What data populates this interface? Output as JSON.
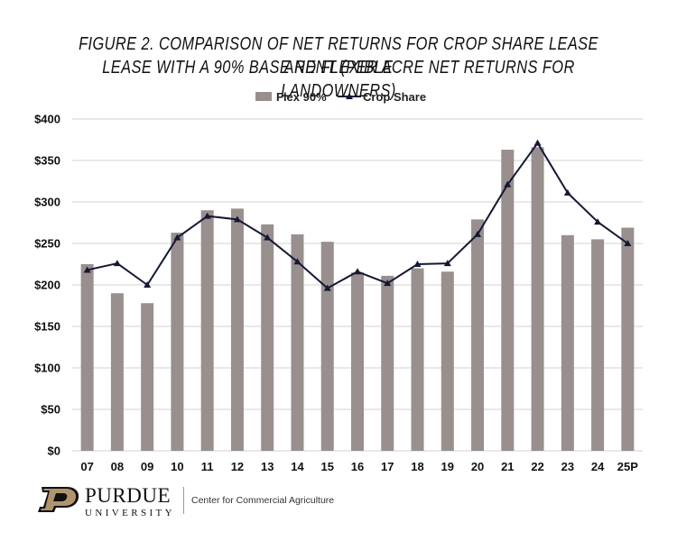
{
  "title": {
    "line1": "FIGURE 2. COMPARISON OF NET RETURNS FOR CROP SHARE LEASE AND FLEXIBLE",
    "line2": "LEASE WITH A 90% BASE RENT  (PER ACRE NET RETURNS FOR LANDOWNERS)"
  },
  "colors": {
    "bar": "#998f8f",
    "line": "#141833",
    "grid": "#d3d3d3",
    "logo_gold": "#b1946c"
  },
  "chart_data": {
    "type": "bar",
    "categories": [
      "07",
      "08",
      "09",
      "10",
      "11",
      "12",
      "13",
      "14",
      "15",
      "16",
      "17",
      "18",
      "19",
      "20",
      "21",
      "22",
      "23",
      "24",
      "25P"
    ],
    "series": [
      {
        "name": "Flex 90%",
        "type": "bar",
        "values": [
          225,
          190,
          178,
          263,
          290,
          292,
          273,
          261,
          252,
          215,
          211,
          220,
          216,
          279,
          363,
          366,
          260,
          255,
          269
        ]
      },
      {
        "name": "Crop Share",
        "type": "line",
        "values": [
          218,
          226,
          200,
          257,
          283,
          279,
          257,
          228,
          196,
          216,
          202,
          225,
          226,
          261,
          321,
          371,
          311,
          276,
          250
        ]
      }
    ],
    "y_ticks": [
      "$0",
      "$50",
      "$100",
      "$150",
      "$200",
      "$250",
      "$300",
      "$350",
      "$400"
    ],
    "ylim": [
      0,
      400
    ],
    "grid": true,
    "legend_position": "top-center"
  },
  "footer": {
    "brand": "PURDUE",
    "brand_sub": "UNIVERSITY",
    "center": "Center for Commercial Agriculture"
  }
}
